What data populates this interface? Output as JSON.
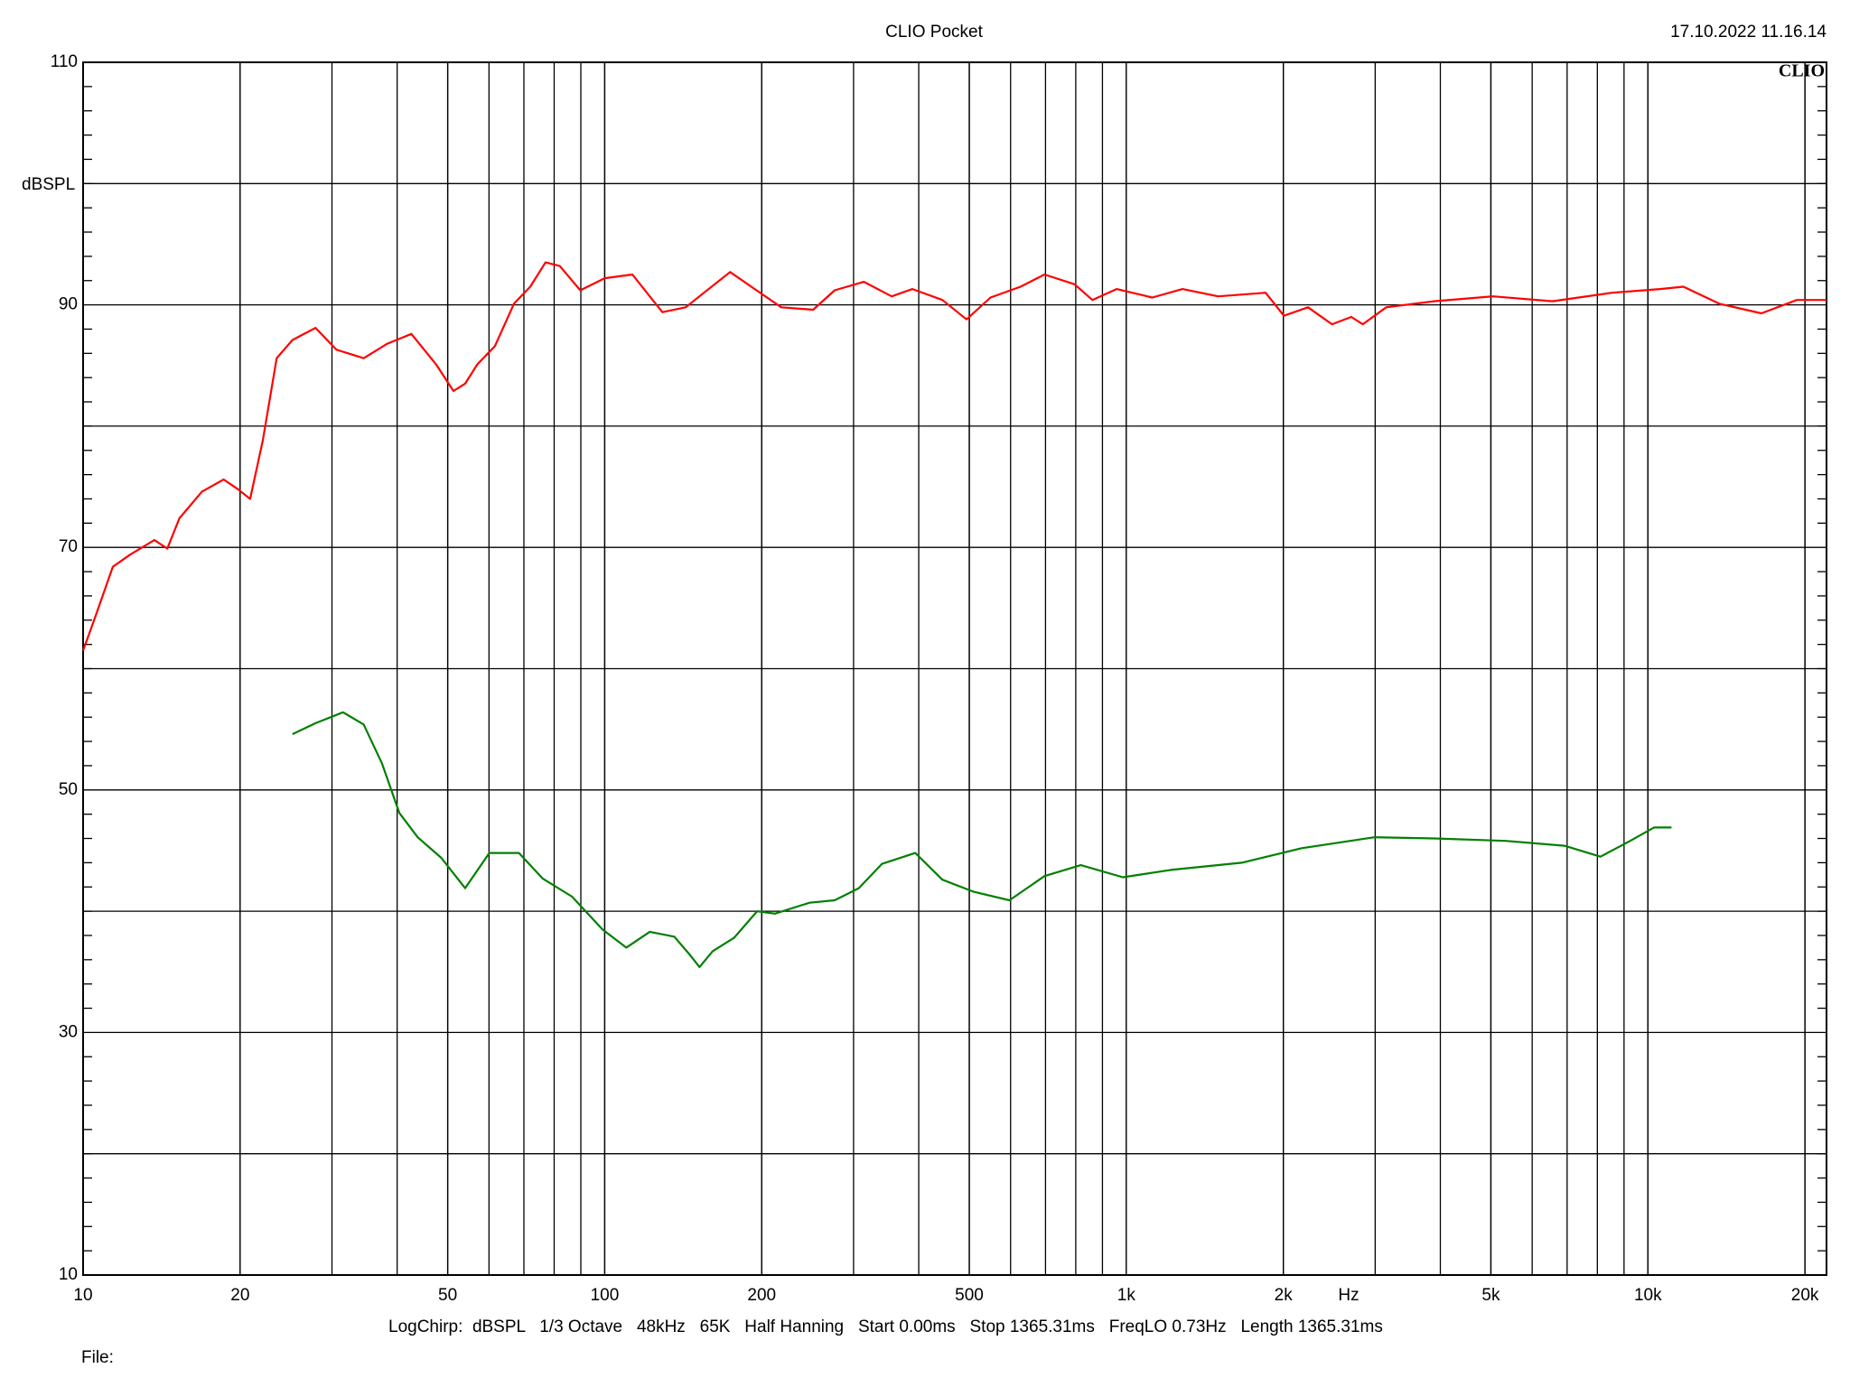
{
  "header": {
    "title": "CLIO Pocket",
    "timestamp": "17.10.2022 11.16.14",
    "logo": "CLIO"
  },
  "chart_data": {
    "type": "line",
    "log_x": true,
    "grid": true,
    "y_label": "dBSPL",
    "x_label": "Hz",
    "xlim": [
      10,
      22000
    ],
    "ylim": [
      10,
      110
    ],
    "xticks": [
      10,
      20,
      50,
      100,
      200,
      500,
      {
        "value": 1000,
        "label": "1k"
      },
      {
        "value": 2000,
        "label": "2k"
      },
      {
        "value": 5000,
        "label": "5k"
      },
      {
        "value": 10000,
        "label": "10k"
      },
      {
        "value": 20000,
        "label": "20k"
      }
    ],
    "yticks": [
      10,
      30,
      50,
      70,
      90,
      110
    ],
    "series": [
      {
        "color": "#ff0000",
        "x": [
          10,
          10.5,
          11.4,
          12.3,
          13.7,
          14.5,
          15.3,
          16.9,
          18.6,
          19.8,
          20.9,
          22.1,
          23.5,
          25.2,
          27.9,
          30.6,
          34.5,
          38.3,
          42.6,
          47.5,
          51.3,
          54,
          57,
          61.6,
          67,
          72,
          77,
          82,
          89.8,
          100,
          113,
          122,
          129,
          143,
          155,
          174,
          191,
          218,
          251,
          276,
          314,
          355,
          389,
          444,
          494,
          549,
          627,
          697,
          796,
          861,
          958,
          1121,
          1282,
          1500,
          1850,
          2005,
          2230,
          2480,
          2700,
          2840,
          3150,
          3890,
          5050,
          6560,
          8530,
          10550,
          11700,
          13700,
          16500,
          19300,
          22000
        ],
        "values": [
          61.5,
          64,
          68.4,
          69.4,
          70.6,
          69.9,
          72.4,
          74.6,
          75.6,
          74.8,
          74,
          78.8,
          85.6,
          87.1,
          88.1,
          86.3,
          85.6,
          86.8,
          87.6,
          85.1,
          82.9,
          83.5,
          85.1,
          86.6,
          90.1,
          91.5,
          93.5,
          93.2,
          91.2,
          92.2,
          92.5,
          90.7,
          89.4,
          89.8,
          91,
          92.7,
          91.5,
          89.8,
          89.6,
          91.2,
          91.9,
          90.7,
          91.3,
          90.4,
          88.8,
          90.6,
          91.5,
          92.5,
          91.7,
          90.4,
          91.3,
          90.6,
          91.3,
          90.7,
          91,
          89.1,
          89.8,
          88.4,
          89,
          88.4,
          89.8,
          90.3,
          90.7,
          90.3,
          91,
          91.3,
          91.5,
          90.1,
          89.3,
          90.4,
          90.4
        ]
      },
      {
        "color": "#008000",
        "x": [
          25.2,
          27.9,
          31.5,
          34.5,
          37.4,
          40.4,
          43.8,
          48.6,
          54,
          60.1,
          68.5,
          76,
          86.6,
          99,
          110,
          122,
          136,
          145,
          152,
          161,
          177,
          196,
          212,
          247,
          276,
          307,
          340,
          394,
          444,
          510,
          597,
          697,
          818,
          985,
          1216,
          1665,
          2170,
          2990,
          3890,
          5330,
          6920,
          8110,
          9250,
          10270,
          11100
        ],
        "values": [
          54.6,
          55.5,
          56.4,
          55.4,
          52.2,
          48.1,
          46.1,
          44.4,
          41.9,
          44.8,
          44.8,
          42.7,
          41.2,
          38.5,
          37,
          38.3,
          37.9,
          36.5,
          35.4,
          36.7,
          37.8,
          40,
          39.8,
          40.7,
          40.9,
          41.9,
          43.9,
          44.8,
          42.6,
          41.6,
          40.9,
          42.9,
          43.8,
          42.8,
          43.4,
          44,
          45.2,
          46.1,
          46,
          45.8,
          45.4,
          44.5,
          45.8,
          46.9,
          46.9
        ]
      }
    ]
  },
  "footer": {
    "settings": "LogChirp:  dBSPL   1/3 Octave   48kHz   65K   Half Hanning   Start 0.00ms   Stop 1365.31ms   FreqLO 0.73Hz   Length 1365.31ms",
    "file": "File:"
  }
}
